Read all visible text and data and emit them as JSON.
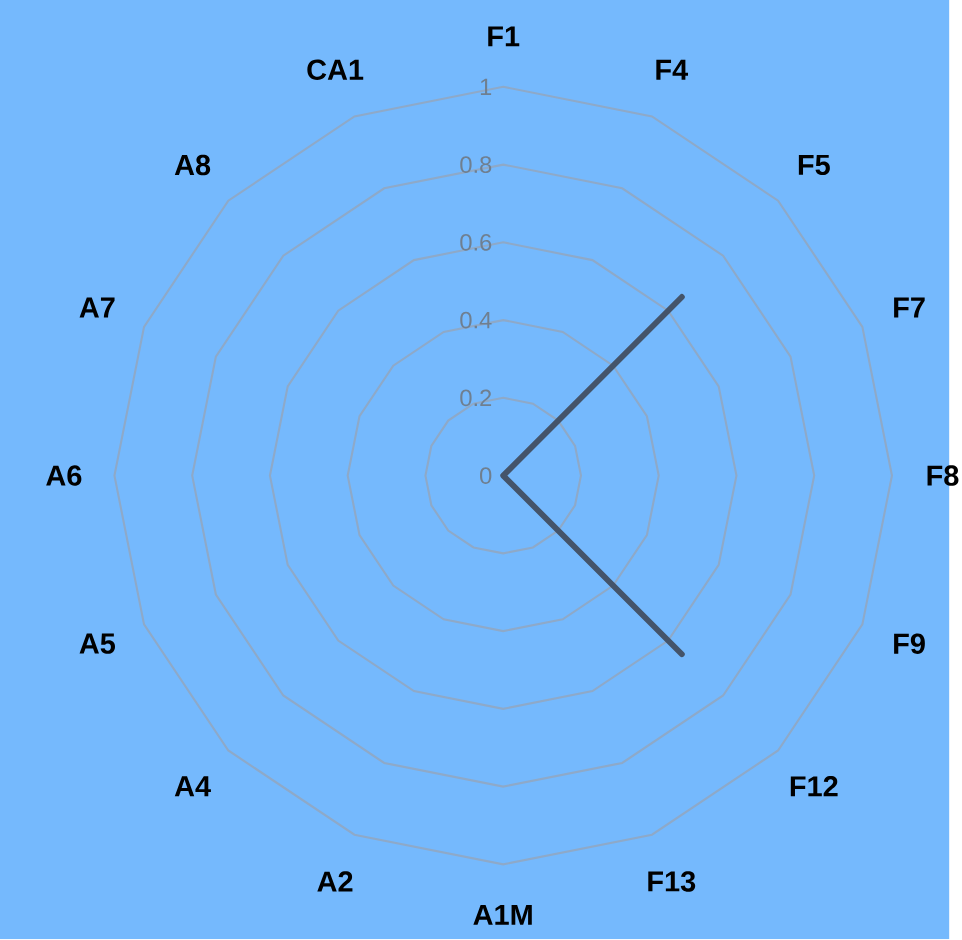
{
  "chart_data": {
    "type": "radar",
    "categories": [
      "F1",
      "F4",
      "F5",
      "F7",
      "F8",
      "F9",
      "F12",
      "F13",
      "A1M",
      "A2",
      "A4",
      "A5",
      "A6",
      "A7",
      "A8",
      "CA1"
    ],
    "series": [
      {
        "color": "#44546a",
        "values": [
          0,
          0,
          0.65,
          0,
          0,
          0,
          0.65,
          0,
          0,
          0,
          0,
          0,
          0,
          0,
          0,
          0
        ]
      }
    ],
    "ylim": [
      0,
      1
    ],
    "yticks": [
      0,
      0.2,
      0.4,
      0.6,
      0.8,
      1
    ],
    "grid": true
  }
}
